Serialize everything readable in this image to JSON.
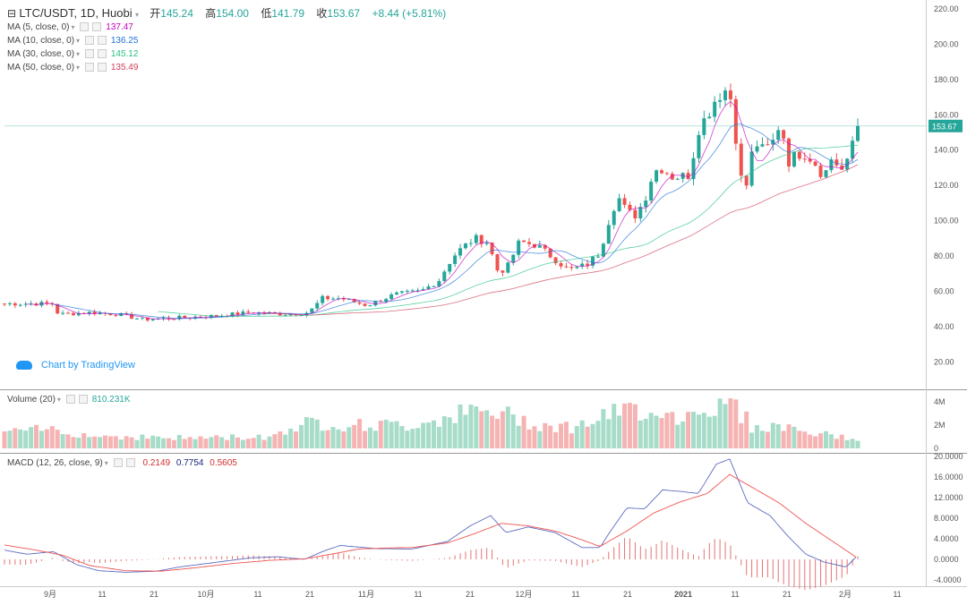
{
  "header": {
    "symbol": "LTC/USDT, 1D, Huobi",
    "open_label": "开",
    "open": "145.24",
    "high_label": "高",
    "high": "154.00",
    "low_label": "低",
    "low": "141.79",
    "close_label": "收",
    "close": "153.67",
    "change": "+8.44 (+5.81%)"
  },
  "ma_legends": [
    {
      "label": "MA (5, close, 0)",
      "value": "137.47",
      "color": "#c000c0"
    },
    {
      "label": "MA (10, close, 0)",
      "value": "136.25",
      "color": "#1e6fd8"
    },
    {
      "label": "MA (30, close, 0)",
      "value": "145.12",
      "color": "#26c281"
    },
    {
      "label": "MA (50, close, 0)",
      "value": "135.49",
      "color": "#d0405a"
    }
  ],
  "volume_legend": {
    "label": "Volume (20)",
    "value": "810.231K"
  },
  "macd_legend": {
    "label": "MACD (12, 26, close, 9)",
    "v1": "0.2149",
    "v2": "0.7754",
    "v3": "0.5605"
  },
  "brand": "Chart by TradingView",
  "price_tag": "153.67",
  "colors": {
    "up": "#26a69a",
    "down": "#ef5350",
    "up_vol": "#a7dcc9",
    "down_vol": "#f5b4b3"
  },
  "chart_data": [
    {
      "type": "candlestick",
      "title": "LTC/USDT, 1D, Huobi",
      "ylim": [
        0,
        220
      ],
      "y_ticks": [
        "220.00",
        "200.00",
        "180.00",
        "160.00",
        "140.00",
        "120.00",
        "100.00",
        "80.00",
        "60.00",
        "40.00",
        "20.00"
      ],
      "x_ticks": [
        "9月",
        "11",
        "21",
        "10月",
        "11",
        "21",
        "11月",
        "11",
        "21",
        "12月",
        "11",
        "21",
        "2021",
        "11",
        "21",
        "2月",
        "11"
      ],
      "anchors": [
        [
          60,
          53
        ],
        [
          64,
          48
        ],
        [
          68,
          47
        ],
        [
          100,
          48
        ],
        [
          130,
          47
        ],
        [
          160,
          44
        ],
        [
          200,
          45
        ],
        [
          240,
          46
        ],
        [
          280,
          48
        ],
        [
          320,
          47
        ],
        [
          345,
          48
        ],
        [
          360,
          56
        ],
        [
          380,
          56
        ],
        [
          410,
          52
        ],
        [
          440,
          58
        ],
        [
          470,
          60
        ],
        [
          490,
          66
        ],
        [
          500,
          75
        ],
        [
          510,
          82
        ],
        [
          520,
          86
        ],
        [
          530,
          90
        ],
        [
          545,
          88
        ],
        [
          555,
          72
        ],
        [
          565,
          72
        ],
        [
          580,
          88
        ],
        [
          600,
          86
        ],
        [
          620,
          78
        ],
        [
          635,
          72
        ],
        [
          655,
          75
        ],
        [
          670,
          82
        ],
        [
          680,
          100
        ],
        [
          690,
          114
        ],
        [
          700,
          105
        ],
        [
          710,
          103
        ],
        [
          720,
          112
        ],
        [
          730,
          128
        ],
        [
          740,
          130
        ],
        [
          750,
          125
        ],
        [
          760,
          125
        ],
        [
          770,
          126
        ],
        [
          780,
          152
        ],
        [
          790,
          160
        ],
        [
          800,
          170
        ],
        [
          810,
          174
        ],
        [
          818,
          168
        ],
        [
          826,
          125
        ],
        [
          834,
          120
        ],
        [
          842,
          145
        ],
        [
          852,
          140
        ],
        [
          862,
          143
        ],
        [
          872,
          157
        ],
        [
          880,
          133
        ],
        [
          890,
          138
        ],
        [
          900,
          138
        ],
        [
          910,
          133
        ],
        [
          920,
          125
        ],
        [
          930,
          137
        ],
        [
          938,
          128
        ],
        [
          945,
          130
        ],
        [
          952,
          145
        ],
        [
          958,
          154
        ]
      ],
      "ma_series": [
        {
          "name": "MA (5, close, 0)",
          "period": 5,
          "color": "#c000c0"
        },
        {
          "name": "MA (10, close, 0)",
          "period": 10,
          "color": "#1e6fd8"
        },
        {
          "name": "MA (30, close, 0)",
          "period": 30,
          "color": "#26c281"
        },
        {
          "name": "MA (50, close, 0)",
          "period": 50,
          "color": "#d0405a"
        }
      ],
      "last_price": 153.67
    },
    {
      "type": "bar",
      "title": "Volume (20)",
      "ylim": [
        0,
        5
      ],
      "y_ticks": [
        "4M",
        "2M",
        "0"
      ],
      "unit": "M",
      "anchors": [
        [
          0,
          1.3
        ],
        [
          60,
          1.7
        ],
        [
          100,
          1.1
        ],
        [
          200,
          0.9
        ],
        [
          300,
          1.0
        ],
        [
          340,
          2.2
        ],
        [
          400,
          2.0
        ],
        [
          460,
          2.0
        ],
        [
          480,
          2.4
        ],
        [
          520,
          3.1
        ],
        [
          560,
          3.0
        ],
        [
          600,
          2.1
        ],
        [
          640,
          1.8
        ],
        [
          670,
          2.6
        ],
        [
          700,
          3.3
        ],
        [
          740,
          3.3
        ],
        [
          760,
          2.4
        ],
        [
          780,
          3.7
        ],
        [
          800,
          3.4
        ],
        [
          820,
          3.9
        ],
        [
          840,
          1.8
        ],
        [
          880,
          1.9
        ],
        [
          900,
          1.4
        ],
        [
          958,
          0.8
        ]
      ]
    },
    {
      "type": "line",
      "title": "MACD (12, 26, close, 9)",
      "ylim": [
        -5,
        20
      ],
      "y_ticks": [
        "20.0000",
        "16.0000",
        "12.0000",
        "8.0000",
        "4.0000",
        "0.0000",
        "-4.0000"
      ],
      "macd_anchors": [
        [
          5,
          1.8
        ],
        [
          30,
          1.0
        ],
        [
          60,
          1.5
        ],
        [
          85,
          -1
        ],
        [
          110,
          -2.2
        ],
        [
          140,
          -2.5
        ],
        [
          175,
          -2.3
        ],
        [
          200,
          -1.5
        ],
        [
          240,
          -0.6
        ],
        [
          280,
          0.3
        ],
        [
          310,
          0.5
        ],
        [
          340,
          0
        ],
        [
          360,
          1.5
        ],
        [
          380,
          2.7
        ],
        [
          420,
          2.1
        ],
        [
          460,
          2.0
        ],
        [
          500,
          3.5
        ],
        [
          525,
          6.5
        ],
        [
          548,
          8.5
        ],
        [
          565,
          5.2
        ],
        [
          590,
          6.3
        ],
        [
          620,
          5.2
        ],
        [
          650,
          2.3
        ],
        [
          670,
          2.3
        ],
        [
          680,
          5
        ],
        [
          700,
          10
        ],
        [
          720,
          9.8
        ],
        [
          740,
          13.5
        ],
        [
          760,
          13.2
        ],
        [
          780,
          12.8
        ],
        [
          800,
          18.5
        ],
        [
          815,
          19.5
        ],
        [
          835,
          11
        ],
        [
          860,
          8.5
        ],
        [
          880,
          4.5
        ],
        [
          900,
          1
        ],
        [
          920,
          -0.5
        ],
        [
          945,
          -1.5
        ],
        [
          958,
          0.8
        ]
      ],
      "signal_anchors": [
        [
          5,
          2.8
        ],
        [
          40,
          1.8
        ],
        [
          70,
          0.8
        ],
        [
          100,
          -1.2
        ],
        [
          140,
          -2.2
        ],
        [
          180,
          -2.3
        ],
        [
          220,
          -1.6
        ],
        [
          260,
          -0.8
        ],
        [
          300,
          -0.2
        ],
        [
          340,
          0.1
        ],
        [
          370,
          1.0
        ],
        [
          400,
          2.0
        ],
        [
          430,
          2.2
        ],
        [
          460,
          2.3
        ],
        [
          500,
          3.2
        ],
        [
          530,
          5
        ],
        [
          560,
          7
        ],
        [
          590,
          6.5
        ],
        [
          620,
          5.5
        ],
        [
          650,
          3.8
        ],
        [
          670,
          2.5
        ],
        [
          700,
          5.5
        ],
        [
          730,
          9
        ],
        [
          760,
          11.2
        ],
        [
          790,
          12.8
        ],
        [
          815,
          16.5
        ],
        [
          840,
          14
        ],
        [
          870,
          11
        ],
        [
          900,
          7
        ],
        [
          930,
          3.5
        ],
        [
          958,
          0.2
        ]
      ]
    }
  ]
}
